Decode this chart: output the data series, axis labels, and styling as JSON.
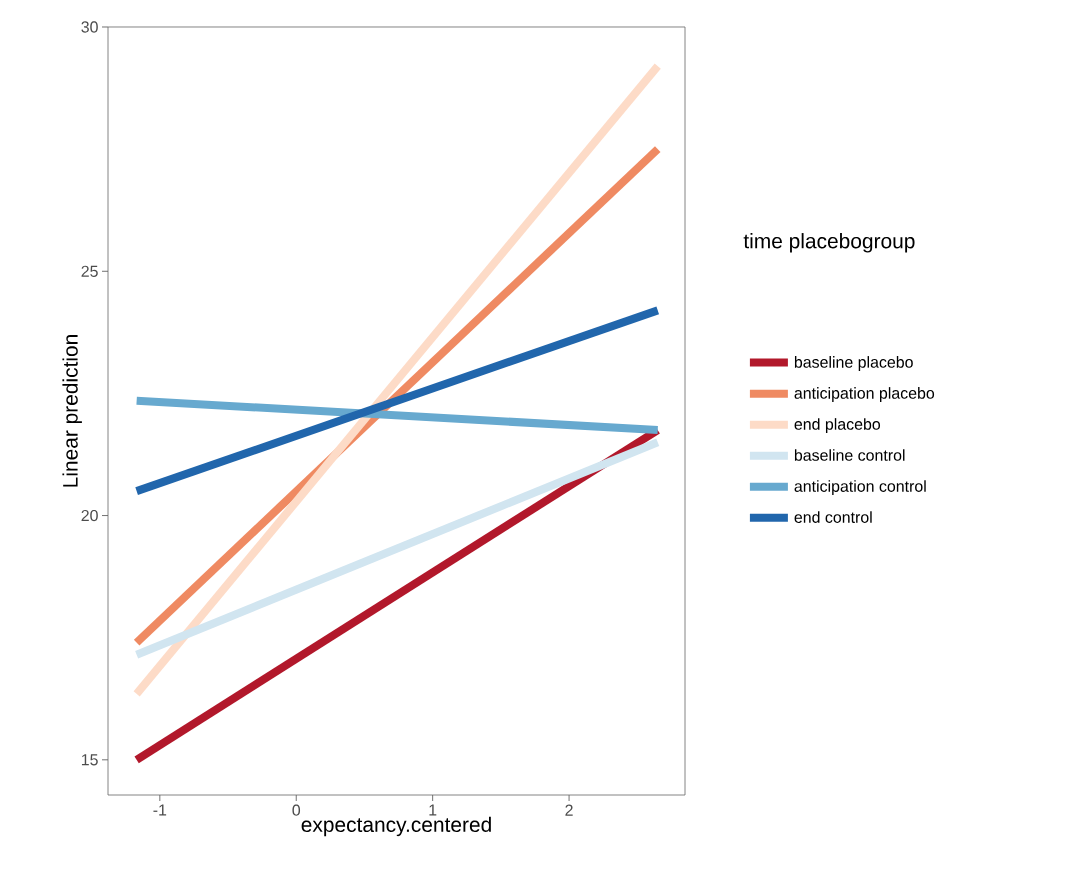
{
  "chart_data": {
    "type": "line",
    "xlabel": "expectancy.centered",
    "ylabel": "Linear prediction",
    "legend_title": "time placebogroup",
    "legend": "right",
    "grid": false,
    "marker": "none",
    "line_style": "solid",
    "xlim": [
      -1.38,
      2.85
    ],
    "ylim": [
      14.28,
      30
    ],
    "xticks": [
      -1,
      0,
      1,
      2
    ],
    "yticks": [
      15,
      20,
      25,
      30
    ],
    "x": [
      -1.17,
      2.65
    ],
    "series": [
      {
        "name": "baseline placebo",
        "color": "#b2182b",
        "values": [
          15.0,
          21.75
        ]
      },
      {
        "name": "anticipation placebo",
        "color": "#ef8a62",
        "values": [
          17.4,
          27.5
        ]
      },
      {
        "name": "end placebo",
        "color": "#fddbc7",
        "values": [
          16.35,
          29.2
        ]
      },
      {
        "name": "baseline control",
        "color": "#d1e5f0",
        "values": [
          17.15,
          21.5
        ]
      },
      {
        "name": "anticipation control",
        "color": "#67a9cf",
        "values": [
          22.35,
          21.75
        ]
      },
      {
        "name": "end control",
        "color": "#2166ac",
        "values": [
          20.5,
          24.2
        ]
      }
    ]
  }
}
